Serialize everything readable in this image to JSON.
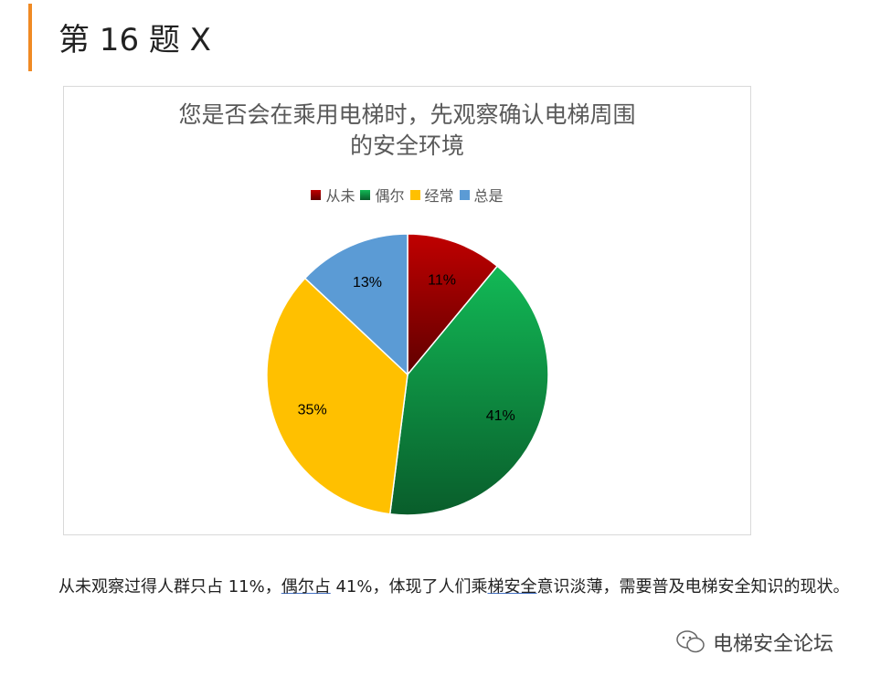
{
  "heading": "第 16 题 X",
  "accent_color": "#f08a24",
  "chart_data": {
    "type": "pie",
    "title_lines": [
      "您是否会在乘用电梯时，先观察确认电梯周围",
      "的安全环境"
    ],
    "legend_position": "top",
    "categories": [
      "从未",
      "偶尔",
      "经常",
      "总是"
    ],
    "values": [
      11,
      41,
      35,
      13
    ],
    "labels": [
      "11%",
      "41%",
      "35%",
      "13%"
    ],
    "colors": [
      "#c00000",
      "#12b956",
      "#ffc000",
      "#5b9bd5"
    ]
  },
  "paragraph": {
    "p1": "从未观察过得人群只占 11%，",
    "u1": "偶尔占",
    "p2": " 41%，体现了人们乘",
    "u2": "梯安全",
    "p3": "意识淡薄，需要普及电梯安全知识的现状。"
  },
  "watermark": "电梯安全论坛"
}
